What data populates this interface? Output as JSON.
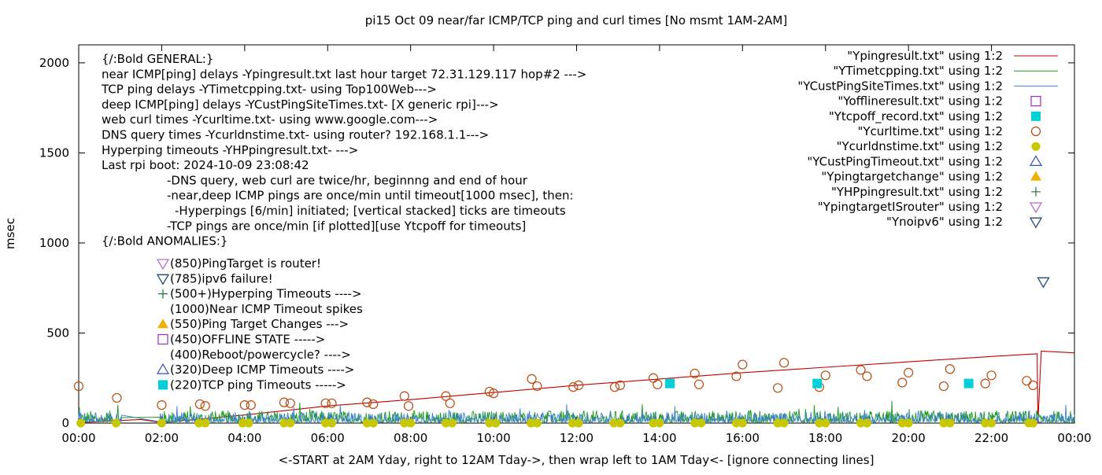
{
  "chart_data": {
    "type": "scatter",
    "title": "pi15 Oct 09  near/far ICMP/TCP ping and curl times [No msmt 1AM-2AM]",
    "xlabel": "<-START at 2AM Yday, right to 12AM Tday->, then wrap left to 1AM Tday<- [ignore connecting lines]",
    "ylabel": "msec",
    "xlim": [
      0,
      24
    ],
    "ylim": [
      0,
      2100
    ],
    "x_ticks": [
      "00:00",
      "02:00",
      "04:00",
      "06:00",
      "08:00",
      "10:00",
      "12:00",
      "14:00",
      "16:00",
      "18:00",
      "20:00",
      "22:00",
      "00:00"
    ],
    "y_ticks": [
      0,
      500,
      1000,
      1500,
      2000
    ],
    "grid": false,
    "legend_placement": "top-right",
    "legend": [
      {
        "label": "\"Ypingresult.txt\" using 1:2",
        "marker": "line",
        "color": "#c00000"
      },
      {
        "label": "\"YTimetcpping.txt\" using 1:2",
        "marker": "line",
        "color": "#1a9a1a"
      },
      {
        "label": "\"YCustPingSiteTimes.txt\" using 1:2",
        "marker": "line",
        "color": "#3a7fd0"
      },
      {
        "label": "\"Yofflineresult.txt\" using 1:2",
        "marker": "open-square",
        "color": "#9b30c0"
      },
      {
        "label": "\"Ytcpoff_record.txt\" using 1:2",
        "marker": "filled-square",
        "color": "#00d0d8"
      },
      {
        "label": "\"Ycurltime.txt\" using 1:2",
        "marker": "open-circle",
        "color": "#b84a10"
      },
      {
        "label": "\"Ycurldnstime.txt\" using 1:2",
        "marker": "filled-circle",
        "color": "#c8c800"
      },
      {
        "label": "\"YCustPingTimeout.txt\" using 1:2",
        "marker": "open-triangle-up",
        "color": "#3050c0"
      },
      {
        "label": "\"Ypingtargetchange\" using 1:2",
        "marker": "filled-triangle-up",
        "color": "#f0b000"
      },
      {
        "label": "\"YHPpingresult.txt\" using 1:2",
        "marker": "plus",
        "color": "#1a7a3a"
      },
      {
        "label": "\"YpingtargetISrouter\" using 1:2",
        "marker": "open-triangle-down",
        "color": "#b070d0"
      },
      {
        "label": "\"Ynoipv6\" using 1:2",
        "marker": "open-triangle-down",
        "color": "#204a70"
      }
    ],
    "annotation_lines": [
      {
        "text": "{/:Bold GENERAL:}",
        "indent": 0
      },
      {
        "text": "near ICMP[ping] delays -Ypingresult.txt last hour target 72.31.129.117 hop#2 --->",
        "indent": 0
      },
      {
        "text": "TCP ping delays -YTimetcpping.txt- using Top100Web--->",
        "indent": 0
      },
      {
        "text": "deep ICMP[ping] delays -YCustPingSiteTimes.txt- [X generic rpi]--->",
        "indent": 0
      },
      {
        "text": "web curl times -Ycurltime.txt- using www.google.com--->",
        "indent": 0
      },
      {
        "text": "DNS query times -Ycurldnstime.txt- using router? 192.168.1.1--->",
        "indent": 0
      },
      {
        "text": "Hyperping timeouts -YHPpingresult.txt- --->",
        "indent": 0
      },
      {
        "text": "Last rpi boot: 2024-10-09 23:08:42",
        "indent": 0
      },
      {
        "text": "-DNS query, web curl are twice/hr, beginnng and end of hour",
        "indent": 1
      },
      {
        "text": "-near,deep ICMP pings are once/min until timeout[1000 msec], then:",
        "indent": 1
      },
      {
        "text": "-Hyperpings [6/min] initiated; [vertical stacked] ticks are timeouts",
        "indent": 2
      },
      {
        "text": "-TCP pings are once/min [if plotted][use Ytcpoff for timeouts]",
        "indent": 1
      },
      {
        "text": "{/:Bold ANOMALIES:}",
        "indent": 0
      }
    ],
    "anomalies": [
      {
        "text": "(850)PingTarget is router!",
        "marker": "open-triangle-down",
        "color": "#b070d0"
      },
      {
        "text": "(785)ipv6 failure!",
        "marker": "open-triangle-down",
        "color": "#204a70"
      },
      {
        "text": "(500+)Hyperping Timeouts ---->",
        "marker": "plus",
        "color": "#1a7a3a"
      },
      {
        "text": "(1000)Near ICMP Timeout spikes",
        "marker": "none",
        "color": "#000000"
      },
      {
        "text": "(550)Ping Target Changes --->",
        "marker": "filled-triangle-up",
        "color": "#f0b000"
      },
      {
        "text": "(450)OFFLINE STATE ----->",
        "marker": "open-square",
        "color": "#9b30c0"
      },
      {
        "text": "(400)Reboot/powercycle? ---->",
        "marker": "none",
        "color": "#000000"
      },
      {
        "text": "(320)Deep ICMP Timeouts ---->",
        "marker": "open-triangle-up",
        "color": "#3050c0"
      },
      {
        "text": "(220)TCP ping Timeouts ----->",
        "marker": "filled-square",
        "color": "#00d0d8"
      }
    ],
    "series": [
      {
        "name": "\"Ypingresult.txt\" using 1:2",
        "type": "line",
        "color": "#c00000",
        "x": [
          0,
          1.5,
          2.0,
          4,
          6,
          8,
          10,
          12,
          14,
          16,
          18,
          20,
          22,
          23.1,
          23.12,
          23.2,
          24
        ],
        "y": [
          3,
          20,
          3,
          45,
          95,
          130,
          170,
          210,
          245,
          280,
          310,
          340,
          370,
          385,
          0,
          400,
          390
        ]
      },
      {
        "name": "\"YTimetcpping.txt\" using 1:2",
        "type": "noise",
        "color": "#1a9a1a",
        "base": 5,
        "amp": 65
      },
      {
        "name": "\"YCustPingSiteTimes.txt\" using 1:2",
        "type": "noise",
        "color": "#3a7fd0",
        "base": 5,
        "amp": 55
      },
      {
        "name": "\"Ycurltime.txt\" using 1:2",
        "type": "scatter",
        "marker": "open-circle",
        "color": "#b84a10",
        "x": [
          0.0,
          0.92,
          2.0,
          2.92,
          3.05,
          4.0,
          4.15,
          4.95,
          5.1,
          5.95,
          6.1,
          6.95,
          7.1,
          7.85,
          7.95,
          8.85,
          8.95,
          9.9,
          10.0,
          10.92,
          11.05,
          11.92,
          12.05,
          12.92,
          13.05,
          13.85,
          13.95,
          14.85,
          14.95,
          15.85,
          16.0,
          16.85,
          17.0,
          17.85,
          18.0,
          18.85,
          19.0,
          19.85,
          20.0,
          20.85,
          21.0,
          21.85,
          22.0,
          22.85,
          23.0
        ],
        "y": [
          205,
          140,
          100,
          105,
          95,
          100,
          100,
          115,
          110,
          110,
          110,
          115,
          105,
          150,
          95,
          150,
          110,
          175,
          165,
          245,
          205,
          200,
          210,
          200,
          210,
          250,
          215,
          275,
          215,
          260,
          325,
          195,
          335,
          200,
          265,
          295,
          260,
          225,
          280,
          205,
          300,
          220,
          265,
          235,
          210
        ]
      },
      {
        "name": "\"Ycurldnstime.txt\" using 1:2",
        "type": "scatter",
        "marker": "filled-circle",
        "color": "#c8c800",
        "x": [
          0.05,
          0.9,
          2.0,
          2.9,
          3.05,
          3.95,
          4.1,
          4.95,
          5.1,
          5.95,
          6.1,
          6.95,
          7.1,
          7.85,
          8.0,
          8.85,
          9.0,
          9.9,
          10.05,
          10.9,
          11.05,
          11.9,
          12.05,
          12.9,
          13.05,
          13.85,
          14.0,
          14.85,
          15.0,
          15.85,
          16.0,
          16.85,
          17.0,
          17.85,
          18.0,
          18.85,
          19.0,
          19.85,
          20.0,
          20.85,
          21.0,
          21.85,
          22.0,
          22.9,
          23.0
        ],
        "y": [
          0,
          0,
          0,
          0,
          0,
          0,
          0,
          0,
          0,
          0,
          0,
          0,
          0,
          0,
          0,
          0,
          0,
          0,
          0,
          0,
          0,
          0,
          0,
          0,
          0,
          0,
          0,
          0,
          0,
          0,
          0,
          0,
          0,
          0,
          0,
          0,
          0,
          0,
          0,
          0,
          0,
          0,
          0,
          0,
          0
        ]
      },
      {
        "name": "\"Ytcpoff_record.txt\" using 1:2",
        "type": "scatter",
        "marker": "filled-square",
        "color": "#00d0d8",
        "x": [
          14.25,
          17.8,
          21.45
        ],
        "y": [
          220,
          220,
          220
        ]
      },
      {
        "name": "\"Ynoipv6\" using 1:2",
        "type": "scatter",
        "marker": "open-triangle-down",
        "color": "#204a70",
        "x": [
          23.25
        ],
        "y": [
          785
        ]
      }
    ]
  }
}
